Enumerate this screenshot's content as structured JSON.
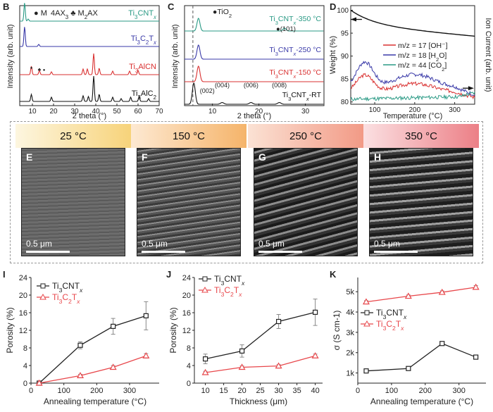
{
  "panels": {
    "B": {
      "letter": "B",
      "legend": [
        "● M4AX3",
        "♣ M2AX"
      ],
      "xlabel": "2 theta (°)",
      "ylabel": "Intensity (arb. unit)",
      "xticks": [
        "10",
        "20",
        "30",
        "40",
        "50",
        "60",
        "70"
      ],
      "trace_labels": [
        "Ti3CNTx",
        "Ti3C2Tx",
        "Ti3AlCN",
        "Ti3AlC2"
      ],
      "colors": [
        "#2a9a85",
        "#3a3aa8",
        "#d93030",
        "#111111"
      ]
    },
    "C": {
      "letter": "C",
      "annot_tio2": "●TiO2",
      "annot_101": "●(101)",
      "peaks": [
        "(002)",
        "(004)",
        "(006)",
        "(008)"
      ],
      "xlabel": "2 theta (°)",
      "ylabel": "Intensity (arb. unit)",
      "xticks": [
        "10",
        "20",
        "30"
      ],
      "trace_labels": [
        "Ti3CNTx-350 °C",
        "Ti3CNTx-250 °C",
        "Ti3CNTx-150 °C",
        "Ti3CNTx-RT"
      ],
      "colors": [
        "#2a9a85",
        "#3a3aa8",
        "#d93030",
        "#111111"
      ]
    },
    "D": {
      "letter": "D",
      "xlabel": "Temperature (°C)",
      "ylabel_left": "Weight (%)",
      "ylabel_right": "Ion Current (arb. unit)",
      "xticks": [
        "100",
        "200",
        "300"
      ],
      "yticks": [
        "80",
        "85",
        "90",
        "95",
        "100"
      ],
      "legend": [
        {
          "label": "m/z = 17 [OH⁻]",
          "color": "#d93030"
        },
        {
          "label": "m/z = 18 [H2O]",
          "color": "#3a3aa8"
        },
        {
          "label": "m/z = 44 [CO2]",
          "color": "#2a9a85"
        }
      ]
    }
  },
  "sem": [
    {
      "temp": "25 °C",
      "letter": "E",
      "scale": "0.5 μm",
      "grad_from": "#fdf6e0",
      "grad_to": "#f7d37a"
    },
    {
      "temp": "150 °C",
      "letter": "F",
      "scale": "0.5 μm",
      "grad_from": "#fde9d2",
      "grad_to": "#f5b46a"
    },
    {
      "temp": "250 °C",
      "letter": "G",
      "scale": "0.5 μm",
      "grad_from": "#fbe2d4",
      "grad_to": "#f29a86"
    },
    {
      "temp": "350 °C",
      "letter": "H",
      "scale": "0.5 μm",
      "grad_from": "#fbe0e2",
      "grad_to": "#ec7f86"
    }
  ],
  "chart_data": [
    {
      "id": "I",
      "type": "line",
      "xlabel": "Annealing temperature (°C)",
      "ylabel": "Porosity (%)",
      "xlim": [
        0,
        390
      ],
      "ylim": [
        0,
        24
      ],
      "xticks": [
        0,
        100,
        200,
        300
      ],
      "yticks": [
        0,
        4,
        8,
        12,
        16,
        20,
        24
      ],
      "x": [
        25,
        150,
        250,
        350
      ],
      "series": [
        {
          "name": "Ti3CNTx",
          "color": "#222222",
          "marker": "square",
          "values": [
            0,
            8.6,
            12.9,
            15.3
          ],
          "err": [
            0.2,
            0.8,
            1.8,
            3.2
          ]
        },
        {
          "name": "Ti3C2Tx",
          "color": "#e8474b",
          "marker": "triangle",
          "values": [
            0,
            1.7,
            3.6,
            6.2
          ],
          "err": [
            0.1,
            0.3,
            0.4,
            0.5
          ]
        }
      ]
    },
    {
      "id": "J",
      "type": "line",
      "xlabel": "Thickness (μm)",
      "ylabel": "Porosity (%)",
      "xlim": [
        7,
        42
      ],
      "ylim": [
        0,
        24
      ],
      "xticks": [
        10,
        15,
        20,
        25,
        30,
        35,
        40
      ],
      "yticks": [
        0,
        4,
        8,
        12,
        16,
        20,
        24
      ],
      "x": [
        10,
        20,
        30,
        40
      ],
      "series": [
        {
          "name": "Ti3CNTx",
          "color": "#222222",
          "marker": "square",
          "values": [
            5.5,
            7.3,
            14.0,
            16.1
          ],
          "err": [
            1.1,
            1.4,
            1.6,
            3.0
          ]
        },
        {
          "name": "Ti3C2Tx",
          "color": "#e8474b",
          "marker": "triangle",
          "values": [
            2.4,
            3.6,
            3.9,
            6.2
          ],
          "err": [
            0.3,
            0.3,
            0.3,
            0.4
          ]
        }
      ]
    },
    {
      "id": "K",
      "type": "line",
      "xlabel": "Annealing temperature (°C)",
      "ylabel": "σ (S cm-1)",
      "xlim": [
        0,
        380
      ],
      "ylim": [
        500,
        5700
      ],
      "xticks": [
        0,
        100,
        200,
        300
      ],
      "yticks": [
        1000,
        2000,
        3000,
        4000,
        5000
      ],
      "ytick_labels": [
        "1k",
        "2k",
        "3k",
        "4k",
        "5k"
      ],
      "x": [
        25,
        150,
        250,
        350
      ],
      "series": [
        {
          "name": "Ti3CNTx",
          "color": "#222222",
          "marker": "square",
          "values": [
            1100,
            1220,
            2450,
            1780
          ],
          "err": [
            40,
            40,
            60,
            80
          ]
        },
        {
          "name": "Ti3C2Tx",
          "color": "#e8474b",
          "marker": "triangle",
          "values": [
            4500,
            4780,
            4970,
            5220
          ],
          "err": [
            60,
            60,
            70,
            80
          ]
        }
      ]
    }
  ]
}
